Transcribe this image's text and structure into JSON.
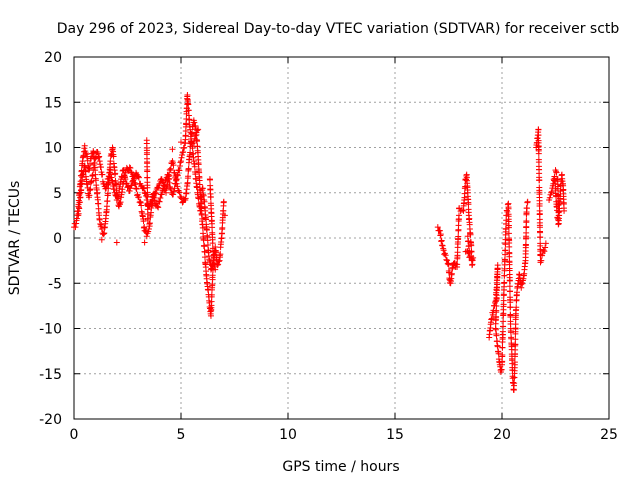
{
  "chart_data": {
    "type": "scatter",
    "title": "Day 296 of 2023, Sidereal Day-to-day VTEC variation (SDTVAR) for receiver sctb",
    "xlabel": "GPS time / hours",
    "ylabel": "SDTVAR / TECUs",
    "xlim": [
      0,
      25
    ],
    "ylim": [
      -20,
      20
    ],
    "xticks": [
      0,
      5,
      10,
      15,
      20,
      25
    ],
    "yticks": [
      -20,
      -15,
      -10,
      -5,
      0,
      5,
      10,
      15,
      20
    ],
    "grid": true,
    "marker": "+",
    "color": "#ff0000",
    "series": [
      {
        "name": "SDTVAR",
        "segments": [
          [
            [
              0.0,
              1.2
            ],
            [
              0.1,
              1.6
            ],
            [
              0.2,
              3.5
            ],
            [
              0.3,
              6.0
            ],
            [
              0.4,
              8.5
            ],
            [
              0.5,
              10.2
            ],
            [
              0.6,
              9.0
            ],
            [
              0.7,
              7.5
            ],
            [
              0.8,
              8.8
            ],
            [
              0.9,
              9.6
            ],
            [
              1.0,
              7.0
            ],
            [
              1.1,
              4.5
            ],
            [
              1.2,
              2.0
            ],
            [
              1.3,
              1.0
            ],
            [
              1.4,
              0.5
            ],
            [
              1.5,
              2.5
            ],
            [
              1.6,
              5.5
            ],
            [
              1.7,
              8.5
            ],
            [
              1.8,
              10.0
            ],
            [
              1.9,
              7.5
            ],
            [
              2.0,
              5.0
            ],
            [
              2.1,
              3.5
            ],
            [
              2.2,
              4.5
            ],
            [
              2.3,
              6.0
            ],
            [
              2.4,
              7.2
            ],
            [
              2.5,
              7.6
            ],
            [
              2.6,
              7.8
            ],
            [
              2.7,
              7.2
            ],
            [
              2.8,
              6.5
            ],
            [
              2.9,
              5.5
            ],
            [
              3.0,
              4.5
            ],
            [
              3.1,
              4.0
            ],
            [
              3.2,
              2.5
            ],
            [
              3.3,
              0.8
            ],
            [
              3.4,
              0.2
            ],
            [
              3.5,
              1.0
            ],
            [
              3.6,
              2.8
            ],
            [
              3.7,
              4.5
            ],
            [
              3.8,
              5.0
            ],
            [
              3.9,
              5.6
            ],
            [
              4.0,
              6.0
            ],
            [
              4.1,
              6.5
            ],
            [
              4.2,
              5.8
            ],
            [
              4.3,
              5.0
            ],
            [
              4.4,
              6.5
            ],
            [
              4.5,
              7.5
            ],
            [
              4.6,
              8.5
            ],
            [
              4.7,
              7.2
            ],
            [
              4.8,
              6.0
            ],
            [
              4.9,
              5.2
            ],
            [
              5.0,
              4.5
            ],
            [
              5.1,
              4.0
            ],
            [
              5.2,
              4.2
            ],
            [
              5.3,
              6.0
            ],
            [
              5.4,
              9.0
            ],
            [
              5.5,
              11.5
            ],
            [
              5.6,
              13.0
            ],
            [
              5.7,
              12.0
            ],
            [
              5.8,
              9.0
            ],
            [
              5.9,
              5.0
            ],
            [
              6.0,
              1.5
            ],
            [
              6.1,
              -1.5
            ],
            [
              6.2,
              -4.5
            ],
            [
              6.3,
              -6.5
            ],
            [
              6.4,
              -8.6
            ],
            [
              6.5,
              -3.0
            ],
            [
              6.6,
              -1.0
            ],
            [
              6.7,
              -3.0
            ],
            [
              6.8,
              -2.5
            ],
            [
              6.9,
              0.0
            ],
            [
              7.0,
              4.0
            ]
          ],
          [
            [
              0.2,
              2.5
            ],
            [
              0.3,
              4.5
            ],
            [
              0.4,
              7.0
            ],
            [
              0.5,
              8.0
            ],
            [
              0.6,
              6.0
            ],
            [
              0.7,
              4.5
            ],
            [
              0.8,
              6.2
            ],
            [
              0.9,
              7.5
            ],
            [
              1.0,
              8.8
            ],
            [
              1.1,
              9.5
            ],
            [
              1.2,
              8.5
            ],
            [
              1.3,
              7.0
            ],
            [
              1.4,
              6.0
            ],
            [
              1.5,
              5.5
            ],
            [
              1.6,
              6.5
            ],
            [
              1.7,
              7.5
            ],
            [
              1.8,
              6.2
            ],
            [
              1.9,
              5.0
            ],
            [
              2.0,
              4.2
            ],
            [
              2.1,
              5.0
            ],
            [
              2.2,
              6.5
            ],
            [
              2.3,
              7.5
            ],
            [
              2.4,
              6.5
            ],
            [
              2.5,
              5.6
            ],
            [
              2.6,
              5.2
            ],
            [
              2.7,
              5.8
            ],
            [
              2.8,
              6.6
            ],
            [
              2.9,
              7.2
            ],
            [
              3.0,
              6.8
            ],
            [
              3.1,
              6.0
            ],
            [
              3.2,
              5.5
            ],
            [
              3.3,
              5.0
            ],
            [
              3.4,
              4.2
            ],
            [
              3.5,
              3.5
            ],
            [
              3.6,
              4.0
            ],
            [
              3.7,
              4.8
            ],
            [
              3.8,
              3.8
            ],
            [
              3.9,
              3.5
            ],
            [
              4.0,
              4.0
            ],
            [
              4.1,
              4.8
            ],
            [
              4.2,
              5.5
            ],
            [
              4.3,
              6.5
            ],
            [
              4.4,
              7.0
            ],
            [
              4.5,
              5.5
            ],
            [
              4.6,
              4.8
            ],
            [
              4.7,
              5.5
            ],
            [
              4.8,
              6.5
            ],
            [
              4.9,
              7.5
            ],
            [
              5.0,
              8.5
            ],
            [
              5.1,
              9.5
            ],
            [
              5.2,
              10.5
            ],
            [
              5.3,
              15.8
            ],
            [
              5.4,
              12.5
            ],
            [
              5.5,
              10.5
            ],
            [
              5.6,
              8.5
            ],
            [
              5.7,
              6.5
            ],
            [
              5.8,
              4.5
            ],
            [
              5.9,
              3.0
            ],
            [
              6.0,
              5.5
            ],
            [
              6.1,
              4.0
            ],
            [
              6.2,
              1.0
            ],
            [
              6.3,
              -2.0
            ],
            [
              6.4,
              -3.5
            ],
            [
              6.5,
              -2.5
            ],
            [
              6.6,
              -3.5
            ]
          ],
          [
            [
              3.4,
              10.8
            ],
            [
              3.45,
              2.0
            ],
            [
              1.3,
              -0.2
            ],
            [
              2.0,
              -0.5
            ],
            [
              3.3,
              -0.5
            ],
            [
              4.6,
              9.8
            ],
            [
              5.0,
              10.6
            ],
            [
              5.6,
              10.5
            ],
            [
              5.8,
              12.0
            ],
            [
              6.35,
              6.5
            ],
            [
              6.5,
              -1.5
            ],
            [
              6.55,
              -2.0
            ],
            [
              7.05,
              2.5
            ]
          ],
          [
            [
              17.0,
              1.2
            ],
            [
              17.1,
              0.8
            ],
            [
              17.2,
              -0.8
            ],
            [
              17.3,
              -1.8
            ],
            [
              17.4,
              -2.4
            ],
            [
              17.5,
              -2.8
            ],
            [
              17.55,
              -4.6
            ],
            [
              17.6,
              -5.0
            ],
            [
              17.7,
              -3.0
            ],
            [
              17.8,
              -2.8
            ],
            [
              17.9,
              -3.2
            ],
            [
              18.0,
              3.3
            ],
            [
              18.2,
              3.0
            ],
            [
              18.3,
              6.5
            ],
            [
              18.35,
              7.0
            ],
            [
              18.4,
              5.0
            ],
            [
              18.45,
              2.5
            ],
            [
              18.5,
              1.0
            ],
            [
              18.55,
              -0.5
            ],
            [
              18.6,
              -3.0
            ],
            [
              18.65,
              -2.2
            ],
            [
              18.3,
              -1.5
            ],
            [
              18.5,
              -2.0
            ],
            [
              18.4,
              0.2
            ]
          ],
          [
            [
              19.4,
              -11.0
            ],
            [
              19.5,
              -9.0
            ],
            [
              19.6,
              -8.0
            ],
            [
              19.7,
              -7.0
            ],
            [
              19.75,
              -5.5
            ],
            [
              19.8,
              -3.0
            ],
            [
              19.7,
              -10.0
            ],
            [
              19.8,
              -12.0
            ],
            [
              19.9,
              -14.0
            ],
            [
              19.95,
              -14.8
            ],
            [
              20.0,
              -14.0
            ],
            [
              20.1,
              -5.0
            ],
            [
              20.2,
              2.5
            ],
            [
              20.3,
              3.8
            ],
            [
              20.4,
              -9.5
            ],
            [
              20.45,
              -12.0
            ],
            [
              20.5,
              -15.5
            ],
            [
              20.55,
              -16.8
            ],
            [
              20.6,
              -14.0
            ],
            [
              20.65,
              -8.0
            ],
            [
              20.7,
              -6.0
            ],
            [
              20.8,
              -4.0
            ],
            [
              20.9,
              -5.5
            ],
            [
              21.0,
              -4.5
            ],
            [
              21.05,
              -3.5
            ],
            [
              21.1,
              -2.5
            ],
            [
              21.15,
              3.3
            ],
            [
              21.2,
              4.0
            ],
            [
              21.6,
              10.0
            ],
            [
              21.65,
              11.0
            ],
            [
              21.7,
              12.0
            ],
            [
              21.8,
              -2.7
            ],
            [
              22.05,
              -0.6
            ]
          ],
          [
            [
              22.2,
              4.2
            ],
            [
              22.3,
              5.0
            ],
            [
              22.4,
              6.0
            ],
            [
              22.45,
              6.8
            ],
            [
              22.5,
              5.5
            ],
            [
              22.55,
              3.5
            ],
            [
              22.6,
              2.2
            ],
            [
              22.65,
              1.6
            ],
            [
              22.7,
              4.0
            ],
            [
              22.75,
              5.8
            ],
            [
              22.8,
              7.0
            ],
            [
              22.85,
              6.0
            ],
            [
              22.9,
              3.0
            ],
            [
              22.5,
              7.5
            ],
            [
              22.6,
              6.5
            ],
            [
              22.65,
              2.5
            ]
          ]
        ]
      }
    ]
  }
}
